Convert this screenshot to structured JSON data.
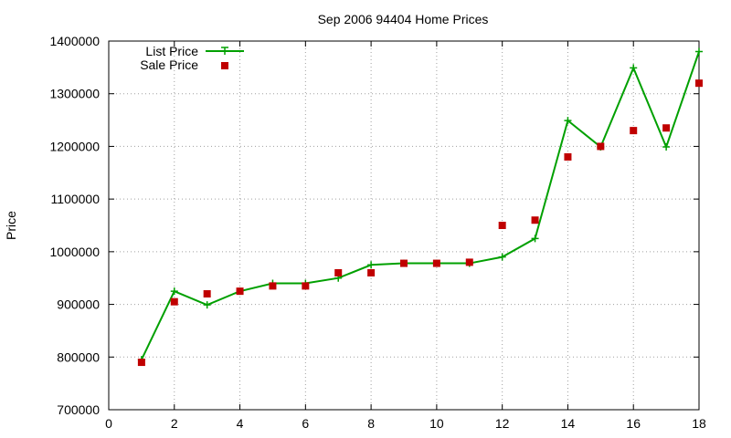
{
  "chart_data": {
    "type": "line",
    "title": "Sep 2006 94404 Home Prices",
    "xlabel": "",
    "ylabel": "Price",
    "xlim": [
      0,
      18
    ],
    "ylim": [
      700000,
      1400000
    ],
    "x_ticks": [
      "0",
      "2",
      "4",
      "6",
      "8",
      "10",
      "12",
      "14",
      "16",
      "18"
    ],
    "y_ticks": [
      "700000",
      "800000",
      "900000",
      "1000000",
      "1100000",
      "1200000",
      "1300000",
      "1400000"
    ],
    "grid": true,
    "legend_position": "top-left",
    "series": [
      {
        "name": "List Price",
        "style": "linespoints",
        "marker": "plus",
        "color": "#00a000",
        "x": [
          1,
          2,
          3,
          4,
          5,
          6,
          7,
          8,
          9,
          10,
          11,
          12,
          13,
          14,
          15,
          16,
          17,
          18
        ],
        "values": [
          795000,
          925000,
          899000,
          925000,
          940000,
          940000,
          950000,
          975000,
          978000,
          978000,
          978000,
          990000,
          1025000,
          1249000,
          1199000,
          1349000,
          1199000,
          1380000
        ]
      },
      {
        "name": "Sale Price",
        "style": "points",
        "marker": "square",
        "color": "#c00000",
        "x": [
          1,
          2,
          3,
          4,
          5,
          6,
          7,
          8,
          9,
          10,
          11,
          12,
          13,
          14,
          15,
          16,
          17,
          18
        ],
        "values": [
          790000,
          905000,
          920000,
          925000,
          935000,
          935000,
          960000,
          960000,
          978000,
          978000,
          980000,
          1050000,
          1060000,
          1180000,
          1200000,
          1230000,
          1235000,
          1320000
        ]
      }
    ]
  }
}
